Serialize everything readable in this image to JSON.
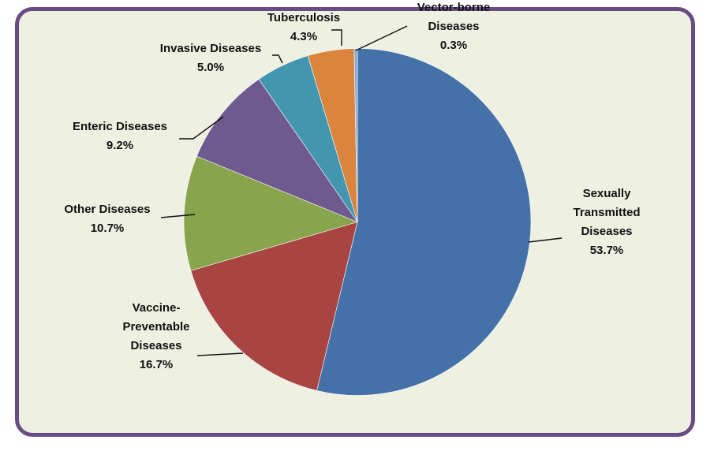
{
  "chart_data": {
    "type": "pie",
    "title": "",
    "start_angle_deg": 0,
    "direction": "clockwise",
    "slices": [
      {
        "label_lines": [
          "Sexually",
          "Transmitted",
          "Diseases"
        ],
        "value": 53.7,
        "value_label": "53.7%",
        "color": "#4472a8"
      },
      {
        "label_lines": [
          "Vaccine-",
          "Preventable",
          "Diseases"
        ],
        "value": 16.7,
        "value_label": "16.7%",
        "color": "#a84543"
      },
      {
        "label_lines": [
          "Other Diseases"
        ],
        "value": 10.7,
        "value_label": "10.7%",
        "color": "#88a44c"
      },
      {
        "label_lines": [
          "Enteric Diseases"
        ],
        "value": 9.2,
        "value_label": "9.2%",
        "color": "#6f5a8f"
      },
      {
        "label_lines": [
          "Invasive Diseases"
        ],
        "value": 5.0,
        "value_label": "5.0%",
        "color": "#4296b0"
      },
      {
        "label_lines": [
          "Tuberculosis"
        ],
        "value": 4.3,
        "value_label": "4.3%",
        "color": "#db843d"
      },
      {
        "label_lines": [
          "Vector-borne",
          "Diseases"
        ],
        "value": 0.3,
        "value_label": "0.3%",
        "color": "#8ea8d4"
      }
    ]
  }
}
